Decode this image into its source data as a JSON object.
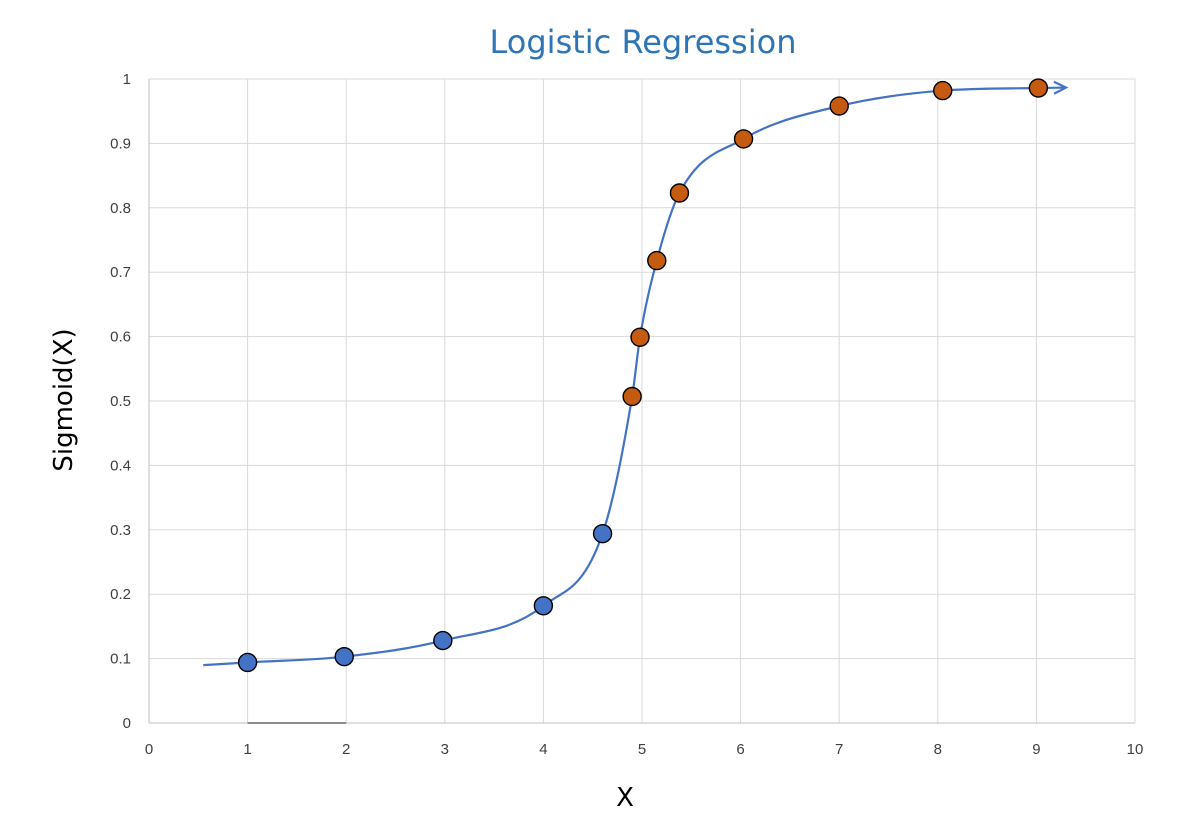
{
  "chart_data": {
    "type": "scatter",
    "title": "Logistic Regression",
    "xlabel": "X",
    "ylabel": "Sigmoid(X)",
    "xlim": [
      0,
      10
    ],
    "ylim": [
      0,
      1
    ],
    "x_ticks": [
      "0",
      "1",
      "2",
      "3",
      "4",
      "5",
      "6",
      "7",
      "8",
      "9",
      "10"
    ],
    "y_ticks": [
      "0",
      "0.1",
      "0.2",
      "0.3",
      "0.4",
      "0.5",
      "0.6",
      "0.7",
      "0.8",
      "0.9",
      "1"
    ],
    "grid": true,
    "curve": {
      "type": "line",
      "x_start": 0.55,
      "x_end": 9.3,
      "arrow_end": true,
      "color": "#4472c4"
    },
    "series": [
      {
        "color": "#4472c4",
        "points": [
          {
            "x": 1.0,
            "y": 0.094
          },
          {
            "x": 1.98,
            "y": 0.103
          },
          {
            "x": 2.98,
            "y": 0.128
          },
          {
            "x": 4.0,
            "y": 0.182
          },
          {
            "x": 4.6,
            "y": 0.294
          }
        ]
      },
      {
        "color": "#c55a11",
        "points": [
          {
            "x": 4.9,
            "y": 0.507
          },
          {
            "x": 4.98,
            "y": 0.599
          },
          {
            "x": 5.15,
            "y": 0.718
          },
          {
            "x": 5.38,
            "y": 0.823
          },
          {
            "x": 6.03,
            "y": 0.907
          },
          {
            "x": 7.0,
            "y": 0.958
          },
          {
            "x": 8.05,
            "y": 0.982
          },
          {
            "x": 9.02,
            "y": 0.986
          }
        ]
      }
    ]
  }
}
